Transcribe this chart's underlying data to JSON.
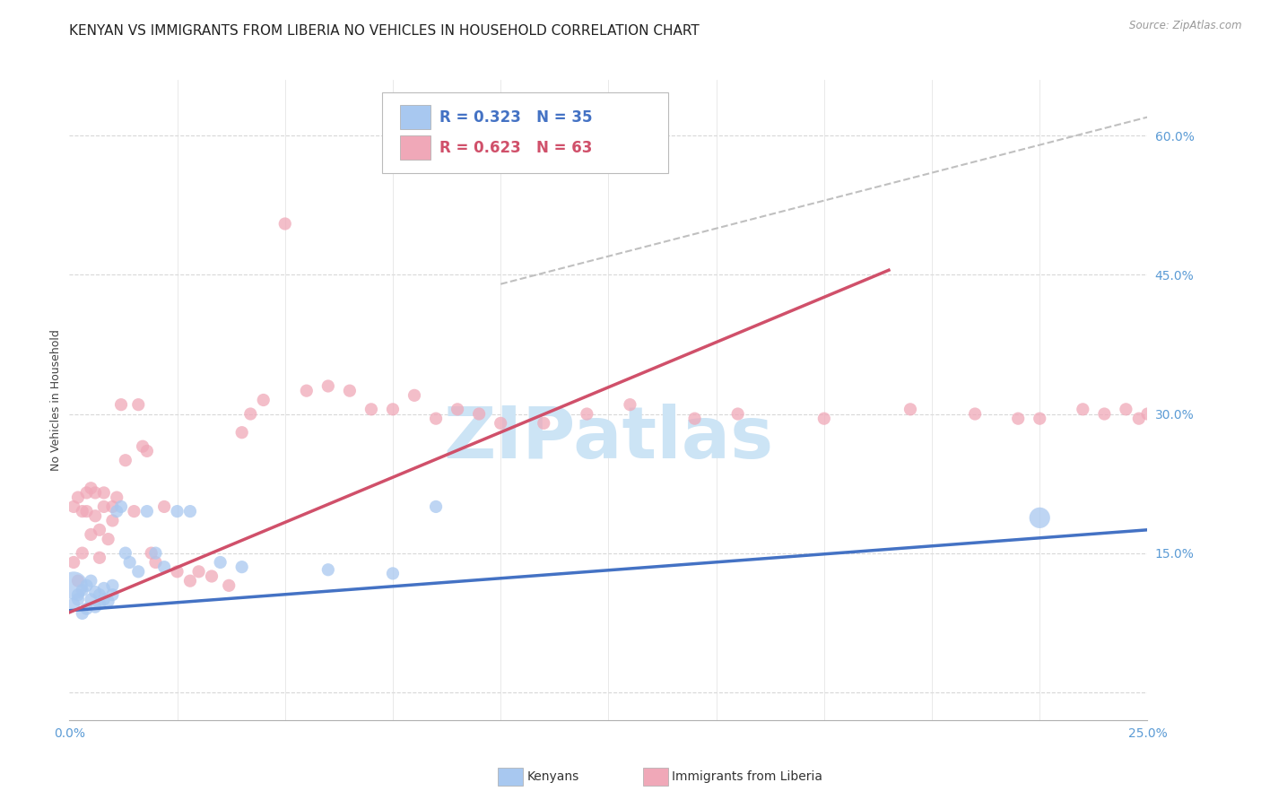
{
  "title": "KENYAN VS IMMIGRANTS FROM LIBERIA NO VEHICLES IN HOUSEHOLD CORRELATION CHART",
  "source": "Source: ZipAtlas.com",
  "ylabel": "No Vehicles in Household",
  "yticks": [
    0.0,
    0.15,
    0.3,
    0.45,
    0.6
  ],
  "ytick_labels": [
    "",
    "15.0%",
    "30.0%",
    "45.0%",
    "60.0%"
  ],
  "xmin": 0.0,
  "xmax": 0.25,
  "ymin": -0.03,
  "ymax": 0.66,
  "legend_blue_R": "R = 0.323",
  "legend_blue_N": "N = 35",
  "legend_pink_R": "R = 0.623",
  "legend_pink_N": "N = 63",
  "label_blue": "Kenyans",
  "label_pink": "Immigrants from Liberia",
  "color_blue": "#a8c8f0",
  "color_pink": "#f0a8b8",
  "color_blue_line": "#4472c4",
  "color_pink_line": "#d0506a",
  "color_dashed": "#c0c0c0",
  "color_yticks": "#5b9bd5",
  "color_xticks": "#5b9bd5",
  "watermark_text": "ZIPatlas",
  "watermark_color": "#cce4f5",
  "title_fontsize": 11,
  "axis_label_fontsize": 9,
  "tick_fontsize": 10,
  "blue_scatter_x": [
    0.001,
    0.001,
    0.002,
    0.002,
    0.003,
    0.003,
    0.004,
    0.004,
    0.005,
    0.005,
    0.006,
    0.006,
    0.007,
    0.007,
    0.008,
    0.008,
    0.009,
    0.01,
    0.01,
    0.011,
    0.012,
    0.013,
    0.014,
    0.016,
    0.018,
    0.02,
    0.022,
    0.025,
    0.028,
    0.035,
    0.04,
    0.06,
    0.075,
    0.085,
    0.225
  ],
  "blue_scatter_y": [
    0.115,
    0.095,
    0.1,
    0.105,
    0.085,
    0.11,
    0.09,
    0.115,
    0.1,
    0.12,
    0.092,
    0.108,
    0.095,
    0.105,
    0.1,
    0.112,
    0.098,
    0.105,
    0.115,
    0.195,
    0.2,
    0.15,
    0.14,
    0.13,
    0.195,
    0.15,
    0.135,
    0.195,
    0.195,
    0.14,
    0.135,
    0.132,
    0.128,
    0.2,
    0.188
  ],
  "blue_scatter_size": [
    500,
    30,
    30,
    30,
    30,
    30,
    30,
    30,
    30,
    30,
    30,
    30,
    30,
    30,
    30,
    30,
    30,
    30,
    30,
    30,
    30,
    30,
    30,
    30,
    30,
    30,
    30,
    30,
    30,
    30,
    30,
    30,
    30,
    30,
    80
  ],
  "pink_scatter_x": [
    0.001,
    0.001,
    0.002,
    0.002,
    0.003,
    0.003,
    0.004,
    0.004,
    0.005,
    0.005,
    0.006,
    0.006,
    0.007,
    0.007,
    0.008,
    0.008,
    0.009,
    0.01,
    0.01,
    0.011,
    0.012,
    0.013,
    0.015,
    0.016,
    0.017,
    0.018,
    0.019,
    0.02,
    0.022,
    0.025,
    0.028,
    0.03,
    0.033,
    0.037,
    0.04,
    0.042,
    0.045,
    0.05,
    0.055,
    0.06,
    0.065,
    0.07,
    0.075,
    0.08,
    0.085,
    0.09,
    0.095,
    0.1,
    0.11,
    0.12,
    0.13,
    0.145,
    0.155,
    0.175,
    0.195,
    0.21,
    0.22,
    0.225,
    0.235,
    0.24,
    0.245,
    0.248,
    0.25
  ],
  "pink_scatter_y": [
    0.2,
    0.14,
    0.21,
    0.12,
    0.15,
    0.195,
    0.215,
    0.195,
    0.17,
    0.22,
    0.215,
    0.19,
    0.145,
    0.175,
    0.2,
    0.215,
    0.165,
    0.2,
    0.185,
    0.21,
    0.31,
    0.25,
    0.195,
    0.31,
    0.265,
    0.26,
    0.15,
    0.14,
    0.2,
    0.13,
    0.12,
    0.13,
    0.125,
    0.115,
    0.28,
    0.3,
    0.315,
    0.505,
    0.325,
    0.33,
    0.325,
    0.305,
    0.305,
    0.32,
    0.295,
    0.305,
    0.3,
    0.29,
    0.29,
    0.3,
    0.31,
    0.295,
    0.3,
    0.295,
    0.305,
    0.3,
    0.295,
    0.295,
    0.305,
    0.3,
    0.305,
    0.295,
    0.3
  ],
  "pink_scatter_size": [
    30,
    30,
    30,
    30,
    30,
    30,
    30,
    30,
    30,
    30,
    30,
    30,
    30,
    30,
    30,
    30,
    30,
    30,
    30,
    30,
    30,
    30,
    30,
    30,
    30,
    30,
    30,
    30,
    30,
    30,
    30,
    30,
    30,
    30,
    30,
    30,
    30,
    30,
    30,
    30,
    30,
    30,
    30,
    30,
    30,
    30,
    30,
    30,
    30,
    30,
    30,
    30,
    30,
    30,
    30,
    30,
    30,
    30,
    30,
    30,
    30,
    30,
    30
  ],
  "blue_line_x": [
    0.0,
    0.25
  ],
  "blue_line_y": [
    0.088,
    0.175
  ],
  "pink_line_x": [
    0.0,
    0.19
  ],
  "pink_line_y": [
    0.086,
    0.455
  ],
  "dashed_line_x": [
    0.1,
    0.25
  ],
  "dashed_line_y": [
    0.44,
    0.62
  ]
}
